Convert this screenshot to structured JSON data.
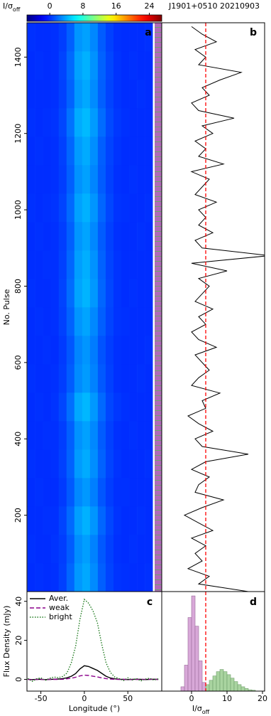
{
  "chart_data": [
    {
      "type": "heatmap",
      "label": "a",
      "ylabel": "No. Pulse",
      "colorbar_label": {
        "main": "I/σ",
        "sub": "off"
      },
      "colormap": "jet",
      "clim": [
        -5.5,
        27
      ],
      "cticks": [
        0,
        8,
        16,
        24
      ],
      "xlim": [
        -66,
        89
      ],
      "ylim": [
        0,
        1490
      ],
      "yticks": [
        200,
        400,
        600,
        800,
        1000,
        1200,
        1400
      ],
      "x": [
        -61,
        -52,
        -43,
        -34,
        -25,
        -16,
        -7,
        2,
        11,
        20,
        29,
        38,
        47,
        56,
        65,
        74
      ],
      "y": [
        37.25,
        111.75,
        186.25,
        260.75,
        335.25,
        409.75,
        484.25,
        558.75,
        633.25,
        707.75,
        782.25,
        856.75,
        931.25,
        1005.75,
        1080.25,
        1154.75,
        1229.25,
        1303.75,
        1378.25,
        1452.75
      ],
      "z": [
        [
          0,
          0.1,
          0,
          0.1,
          0.6,
          1.8,
          3.4,
          3.9,
          3.0,
          1.6,
          0.7,
          0.2,
          0.1,
          0,
          0,
          0.1
        ],
        [
          0.1,
          0,
          0,
          0.2,
          0.5,
          1.5,
          3.1,
          3.6,
          2.7,
          1.4,
          0.6,
          0.1,
          0,
          0.1,
          0,
          0
        ],
        [
          0,
          0,
          0.1,
          0.1,
          0.7,
          1.9,
          3.6,
          4.2,
          3.3,
          1.8,
          0.8,
          0.2,
          0,
          0,
          0.1,
          0
        ],
        [
          0,
          0.1,
          0,
          0,
          0.4,
          1.4,
          2.9,
          3.4,
          2.6,
          1.3,
          0.5,
          0.1,
          0.1,
          0,
          0,
          0
        ],
        [
          0.1,
          0,
          0,
          0.1,
          0.6,
          1.7,
          3.5,
          4.0,
          3.1,
          1.7,
          0.7,
          0.2,
          0,
          0,
          0,
          0.1
        ],
        [
          0,
          0,
          0.1,
          0.1,
          0.5,
          1.6,
          3.2,
          3.7,
          2.9,
          1.5,
          0.6,
          0.1,
          0,
          0.1,
          0,
          0
        ],
        [
          0,
          0.1,
          0,
          0.2,
          0.8,
          2.1,
          3.9,
          4.4,
          3.4,
          1.9,
          0.8,
          0.3,
          0.1,
          0,
          0,
          0
        ],
        [
          0.1,
          0,
          0,
          0.1,
          0.5,
          1.5,
          3.0,
          3.5,
          2.7,
          1.4,
          0.6,
          0.1,
          0,
          0,
          0.1,
          0
        ],
        [
          0,
          0,
          0.1,
          0,
          0.4,
          1.3,
          2.8,
          3.3,
          2.5,
          1.2,
          0.5,
          0.1,
          0,
          0,
          0,
          0.1
        ],
        [
          0,
          0.1,
          0,
          0.1,
          0.6,
          1.7,
          3.3,
          3.8,
          2.9,
          1.6,
          0.7,
          0.2,
          0.1,
          0,
          0,
          0
        ],
        [
          0.1,
          0,
          0,
          0.1,
          0.7,
          2.0,
          3.8,
          4.3,
          3.4,
          1.8,
          0.8,
          0.2,
          0,
          0.1,
          0,
          0
        ],
        [
          0,
          0,
          0.1,
          0.1,
          0.6,
          1.8,
          3.6,
          4.1,
          3.2,
          1.7,
          0.7,
          0.2,
          0,
          0,
          0,
          0
        ],
        [
          0,
          0.1,
          0,
          0.1,
          0.5,
          1.6,
          3.3,
          3.8,
          2.9,
          1.5,
          0.6,
          0.1,
          0,
          0,
          0.1,
          0
        ],
        [
          0.1,
          0,
          0.1,
          0.2,
          0.7,
          1.9,
          3.7,
          4.2,
          3.3,
          1.8,
          0.8,
          0.2,
          0.1,
          0,
          0,
          0.1
        ],
        [
          0,
          0,
          0,
          0.1,
          0.5,
          1.6,
          3.2,
          3.7,
          2.8,
          1.5,
          0.6,
          0.1,
          0,
          0.1,
          0,
          0
        ],
        [
          0,
          0.1,
          0,
          0.1,
          0.6,
          1.8,
          3.5,
          4.0,
          3.1,
          1.6,
          0.7,
          0.2,
          0,
          0,
          0,
          0
        ],
        [
          0.1,
          0,
          0.1,
          0.2,
          0.8,
          2.2,
          4.0,
          4.5,
          3.5,
          2.0,
          0.9,
          0.3,
          0.1,
          0,
          0,
          0
        ],
        [
          0,
          0,
          0,
          0.1,
          0.6,
          1.7,
          3.4,
          3.9,
          3.0,
          1.6,
          0.7,
          0.2,
          0,
          0,
          0.1,
          0
        ],
        [
          0,
          0.1,
          0,
          0.1,
          0.7,
          1.9,
          3.7,
          4.2,
          3.2,
          1.7,
          0.8,
          0.2,
          0,
          0.1,
          0,
          0
        ],
        [
          0.1,
          0,
          0,
          0.1,
          0.5,
          1.6,
          3.3,
          3.7,
          2.9,
          1.5,
          0.6,
          0.1,
          0,
          0,
          0,
          0.1
        ]
      ]
    },
    {
      "type": "pulse-series",
      "label": "b",
      "title": "J1901+0510   20210903",
      "xlim": [
        -8.4,
        20.6
      ],
      "ylim": [
        0,
        1490
      ],
      "color": "#000000",
      "threshold": 4,
      "threshold_color": "#ff0000",
      "pulse": [
        0,
        20,
        40,
        60,
        80,
        100,
        120,
        140,
        160,
        180,
        200,
        220,
        240,
        260,
        280,
        300,
        320,
        340,
        360,
        380,
        400,
        420,
        440,
        460,
        480,
        500,
        520,
        540,
        560,
        580,
        600,
        620,
        640,
        660,
        680,
        700,
        720,
        740,
        760,
        780,
        800,
        820,
        840,
        860,
        880,
        900,
        920,
        940,
        960,
        980,
        1000,
        1020,
        1040,
        1060,
        1080,
        1100,
        1120,
        1140,
        1160,
        1180,
        1200,
        1220,
        1240,
        1260,
        1280,
        1300,
        1320,
        1340,
        1360,
        1380,
        1400,
        1420,
        1440,
        1460,
        1480
      ],
      "values": [
        16,
        2,
        5,
        -1,
        3,
        1,
        4,
        0,
        6,
        2,
        -2,
        3,
        9,
        1,
        2,
        5,
        0,
        4,
        16,
        3,
        1,
        6,
        2,
        -1,
        4,
        3,
        8,
        0,
        2,
        5,
        3,
        1,
        7,
        2,
        0,
        4,
        2,
        6,
        1,
        3,
        5,
        2,
        10,
        0,
        22,
        3,
        1,
        6,
        2,
        4,
        2,
        7,
        1,
        3,
        5,
        0,
        9,
        2,
        4,
        1,
        6,
        3,
        12,
        2,
        0,
        5,
        3,
        8,
        14,
        2,
        4,
        1,
        7,
        3,
        0
      ]
    },
    {
      "type": "line",
      "label": "c",
      "xlabel": "Longitude (°)",
      "ylabel": "Flux Density (mJy)",
      "xlim": [
        -66,
        89
      ],
      "ylim": [
        -6,
        45
      ],
      "xticks": [
        -50,
        0,
        50
      ],
      "yticks": [
        0,
        20,
        40
      ],
      "legend": "upper left",
      "x": [
        -65,
        -60,
        -55,
        -50,
        -45,
        -40,
        -35,
        -30,
        -25,
        -20,
        -15,
        -10,
        -5,
        0,
        5,
        10,
        15,
        20,
        25,
        30,
        35,
        40,
        45,
        50,
        55,
        60,
        65,
        70,
        75,
        80,
        85
      ],
      "series": [
        {
          "name": "Aver.",
          "color": "#000000",
          "style": "solid",
          "values": [
            0.1,
            -0.1,
            0,
            0.1,
            -0.1,
            0,
            0.1,
            0.2,
            0.4,
            0.8,
            1.6,
            3.0,
            5.4,
            7.0,
            6.6,
            5.6,
            4.6,
            3.1,
            1.6,
            0.7,
            0.3,
            0.1,
            0,
            -0.1,
            0,
            0.1,
            0,
            -0.1,
            0,
            0.1,
            0
          ]
        },
        {
          "name": "weak",
          "color": "#8b008b",
          "style": "dashed",
          "values": [
            0,
            -0.2,
            0,
            0,
            -0.1,
            0,
            0,
            0,
            0.1,
            0.3,
            0.6,
            1.1,
            1.8,
            2.2,
            2.0,
            1.6,
            1.3,
            0.8,
            0.4,
            0.2,
            0.1,
            0,
            0,
            0,
            -0.1,
            0,
            0,
            0,
            0.1,
            0,
            0
          ]
        },
        {
          "name": "bright",
          "color": "#1e7a1e",
          "style": "dotted",
          "values": [
            0.5,
            -1,
            0.3,
            0.8,
            -0.5,
            0.6,
            1.2,
            0.9,
            1.5,
            3.2,
            8.5,
            17,
            31,
            41,
            39,
            35,
            29,
            18,
            8.5,
            3.5,
            1.2,
            0.4,
            -0.6,
            0.8,
            -0.3,
            0.5,
            -0.8,
            0.2,
            0.6,
            -0.4,
            0.3
          ]
        }
      ]
    },
    {
      "type": "histogram",
      "label": "d",
      "xlabel": {
        "main": "I/σ",
        "sub": "off"
      },
      "xlim": [
        -8.4,
        20.6
      ],
      "ylim": [
        0,
        230
      ],
      "xticks": [
        0,
        10,
        20
      ],
      "threshold": 4,
      "threshold_color": "#ff0000",
      "series": [
        {
          "color": "#d8a8d8",
          "edgecolor": "#9a6a9a",
          "bins": [
            -3,
            -2,
            -1,
            0,
            1,
            2,
            3,
            4
          ],
          "values": [
            10,
            60,
            170,
            220,
            150,
            70,
            20
          ]
        },
        {
          "color": "#a9d4a0",
          "edgecolor": "#6f9e6a",
          "bins": [
            4,
            5,
            6,
            7,
            8,
            9,
            10,
            11,
            12,
            13,
            14,
            15,
            16,
            17,
            18
          ],
          "values": [
            15,
            25,
            35,
            45,
            50,
            45,
            38,
            30,
            22,
            15,
            10,
            6,
            3,
            2
          ]
        }
      ]
    }
  ]
}
